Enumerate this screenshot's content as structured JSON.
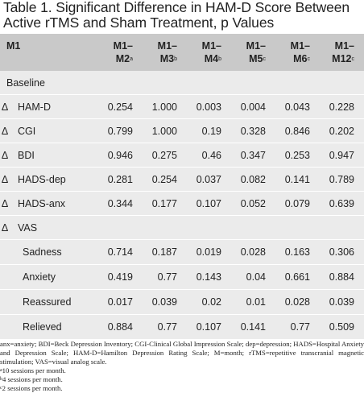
{
  "title": "Table 1.  Significant Difference in HAM-D Score Between Active rTMS and Sham Treatment, p Values",
  "header": {
    "first": "M1",
    "columns": [
      {
        "top": "M1–",
        "bottom": "M2",
        "sup": "a"
      },
      {
        "top": "M1–",
        "bottom": "M3",
        "sup": "b"
      },
      {
        "top": "M1–",
        "bottom": "M4",
        "sup": "b"
      },
      {
        "top": "M1–",
        "bottom": "M5",
        "sup": "c"
      },
      {
        "top": "M1–",
        "bottom": "M6",
        "sup": "c"
      },
      {
        "top": "M1–",
        "bottom": "M12",
        "sup": "c"
      }
    ]
  },
  "baseline_label": "Baseline",
  "delta_symbol": "Δ",
  "baseline_rows": [
    {
      "label": "HAM-D",
      "values": [
        "0.254",
        "1.000",
        "0.003",
        "0.004",
        "0.043",
        "0.228"
      ]
    },
    {
      "label": "CGI",
      "values": [
        "0.799",
        "1.000",
        "0.19",
        "0.328",
        "0.846",
        "0.202"
      ]
    },
    {
      "label": "BDI",
      "values": [
        "0.946",
        "0.275",
        "0.46",
        "0.347",
        "0.253",
        "0.947"
      ]
    },
    {
      "label": "HADS-dep",
      "values": [
        "0.281",
        "0.254",
        "0.037",
        "0.082",
        "0.141",
        "0.789"
      ]
    },
    {
      "label": "HADS-anx",
      "values": [
        "0.344",
        "0.177",
        "0.107",
        "0.052",
        "0.079",
        "0.639"
      ]
    }
  ],
  "vas_label": "VAS",
  "vas_rows": [
    {
      "label": "Sadness",
      "values": [
        "0.714",
        "0.187",
        "0.019",
        "0.028",
        "0.163",
        "0.306"
      ]
    },
    {
      "label": "Anxiety",
      "values": [
        "0.419",
        "0.77",
        "0.143",
        "0.04",
        "0.661",
        "0.884"
      ]
    },
    {
      "label": "Reassured",
      "values": [
        "0.017",
        "0.039",
        "0.02",
        "0.01",
        "0.028",
        "0.039"
      ]
    },
    {
      "label": "Relieved",
      "values": [
        "0.884",
        "0.77",
        "0.107",
        "0.141",
        "0.77",
        "0.509"
      ]
    }
  ],
  "footnotes": {
    "abbreviations": "anx=anxiety; BDI=Beck Depression Inventory; CGI-Clinical Global Impression Scale; dep=depression; HADS=Hospital Anxiety and Depression Scale; HAM-D=Hamilton Depression Rating Scale; M=month; rTMS=repetitive transcranial magnetic stimulation; VAS=visual analog scale.",
    "notes": [
      {
        "mark": "a",
        "text": "10 sessions per month."
      },
      {
        "mark": "b",
        "text": "4 sessions per month."
      },
      {
        "mark": "c",
        "text": "2 sessions per month."
      }
    ]
  }
}
